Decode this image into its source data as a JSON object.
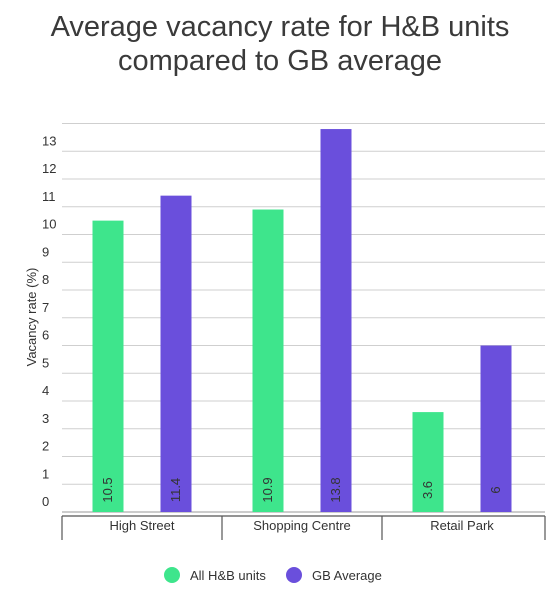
{
  "chart_data": {
    "type": "bar",
    "title": "Average vacancy rate for H&B units\ncompared to GB average",
    "ylabel": "Vacancy rate (%)",
    "xlabel": "",
    "categories": [
      "High Street",
      "Shopping Centre",
      "Retail Park"
    ],
    "series": [
      {
        "name": "All H&B units",
        "values": [
          10.5,
          10.9,
          3.6
        ],
        "color": "#3ee58c"
      },
      {
        "name": "GB Average",
        "values": [
          11.4,
          13.8,
          6
        ],
        "color": "#6a4fdc"
      }
    ],
    "value_labels": [
      [
        "10.5",
        "10.9",
        "3.6"
      ],
      [
        "11.4",
        "13.8",
        "6"
      ]
    ],
    "ylim": [
      0,
      14
    ],
    "yticks": [
      0,
      1,
      2,
      3,
      4,
      5,
      6,
      7,
      8,
      9,
      10,
      11,
      12,
      13
    ],
    "grid": true,
    "legend": "bottom"
  }
}
